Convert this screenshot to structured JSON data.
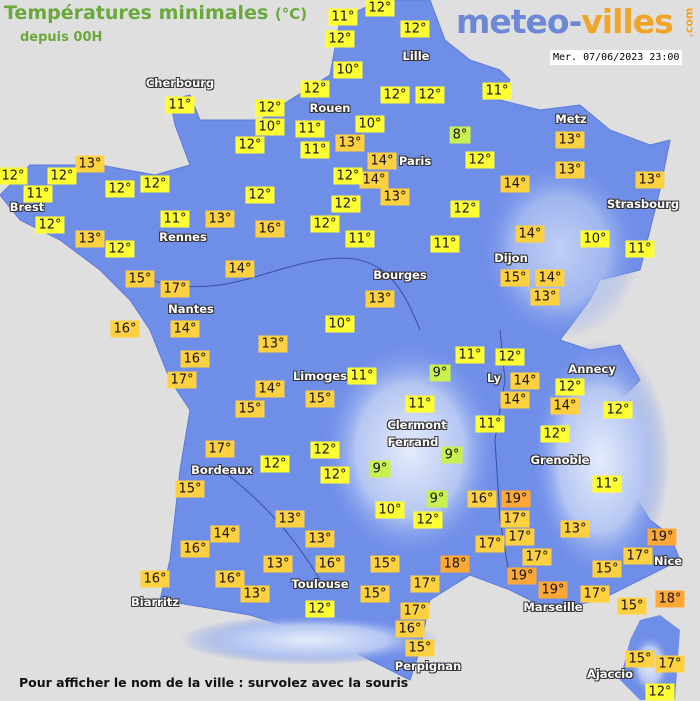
{
  "header": {
    "title": "Températures minimales",
    "unit": "(°C)",
    "subtitle": "depuis 00H",
    "logo_part1": "meteo-",
    "logo_part2": "villes",
    "logo_suffix": ".com",
    "datetime": "Mer. 07/06/2023 23:00"
  },
  "footer": {
    "hint": "Pour afficher le nom de la ville : survolez avec la souris"
  },
  "colors": {
    "land": "#6f8ee8",
    "sea": "#e0dfe0",
    "cold": "#c8f050",
    "mild": "#ffff33",
    "warm": "#ffd040",
    "hot": "#ffa838",
    "title": "#6aa83c"
  },
  "cities": [
    "Cherbourg",
    "Rouen",
    "Lille",
    "Paris",
    "Metz",
    "Strasbourg",
    "Brest",
    "Rennes",
    "Nantes",
    "Bourges",
    "Dijon",
    "Limoges",
    "Ly",
    "Annecy",
    "Clermont",
    "Ferrand",
    "Grenoble",
    "Bordeaux",
    "Toulouse",
    "Biarritz",
    "Marseille",
    "Nice",
    "Perpignan",
    "Ajaccio"
  ],
  "temperatures": [
    11,
    12,
    12,
    10,
    12,
    11,
    12,
    12,
    10,
    11,
    11,
    12,
    13,
    10,
    12,
    12,
    11,
    8,
    12,
    14,
    14,
    13,
    12,
    12,
    12,
    13,
    12,
    12,
    11,
    12,
    12,
    12,
    13,
    12,
    11,
    13,
    12,
    16,
    14,
    15,
    17,
    16,
    14,
    11,
    11,
    12,
    14,
    13,
    13,
    13,
    14,
    10,
    11,
    15,
    14,
    13,
    13,
    10,
    13,
    16,
    17,
    14,
    15,
    15,
    11,
    9,
    11,
    12,
    14,
    14,
    12,
    14,
    12,
    11,
    11,
    12,
    17,
    12,
    12,
    12,
    9,
    9,
    15,
    13,
    10,
    9,
    12,
    16,
    19,
    17,
    11,
    13,
    14,
    16,
    13,
    17,
    17,
    17,
    19,
    17,
    16,
    16,
    13,
    16,
    15,
    18,
    17,
    19,
    19,
    15,
    13,
    12,
    15,
    17,
    16,
    15,
    17,
    15,
    18,
    15,
    17,
    12
  ]
}
